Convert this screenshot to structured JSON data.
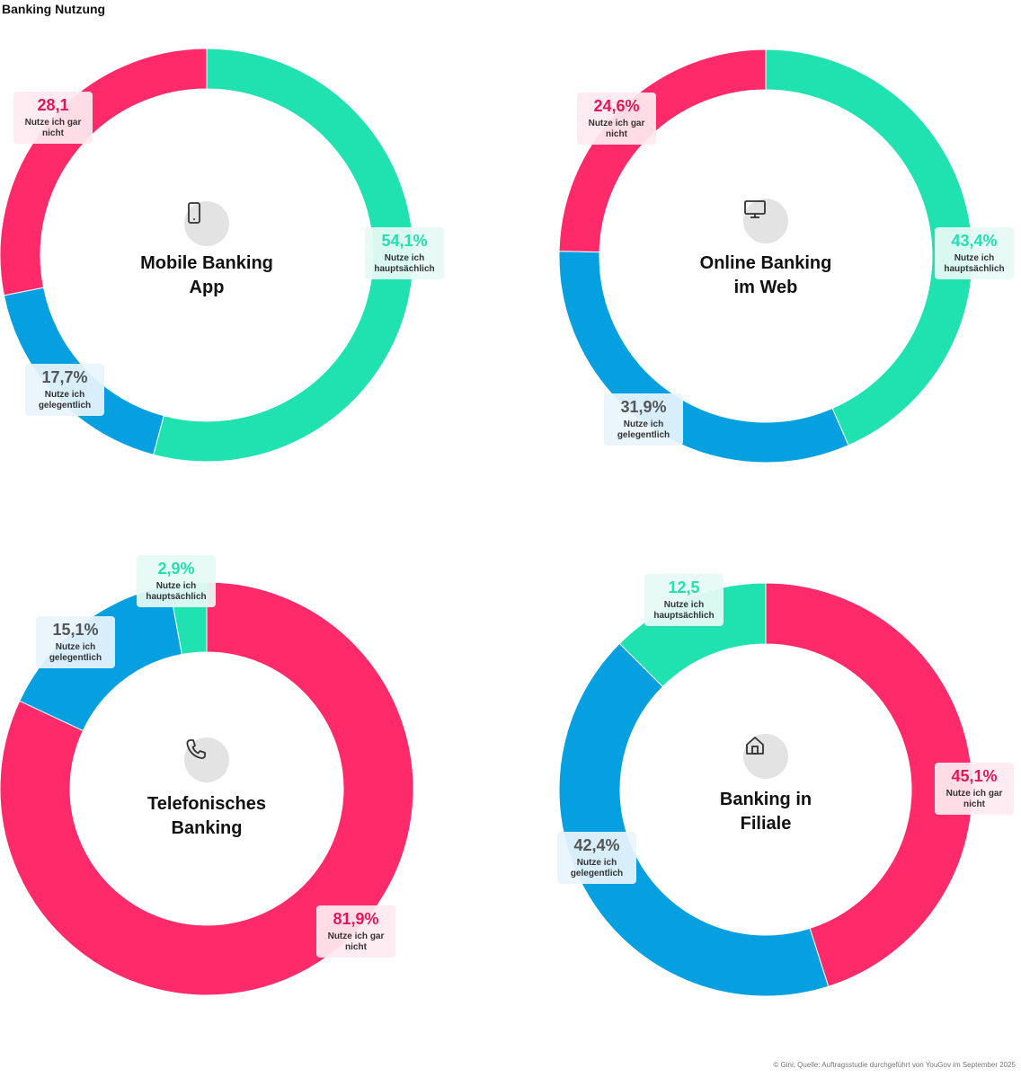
{
  "page_title": "Banking Nutzung",
  "footer": "© Gini; Quelle: Auftragsstudie durchgeführt von YouGov im September 2025",
  "colors": {
    "hauptsaechlich": "#20e2b0",
    "gelegentlich": "#069fdf",
    "gar_nicht": "#ff2a6a"
  },
  "chart_data": [
    {
      "type": "pie",
      "title": "Mobile Banking App",
      "icon": "smartphone-icon",
      "slices": [
        {
          "key": "hauptsaechlich",
          "value": 54.1,
          "label": "54,1%",
          "text": "Nutze ich hauptsächlich"
        },
        {
          "key": "gelegentlich",
          "value": 17.7,
          "label": "17,7%",
          "text": "Nutze ich gelegentlich"
        },
        {
          "key": "gar_nicht",
          "value": 28.1,
          "label": "28,1",
          "text": "Nutze ich gar nicht"
        }
      ]
    },
    {
      "type": "pie",
      "title": "Online Banking im Web",
      "icon": "monitor-icon",
      "slices": [
        {
          "key": "hauptsaechlich",
          "value": 43.4,
          "label": "43,4%",
          "text": "Nutze ich hauptsächlich"
        },
        {
          "key": "gelegentlich",
          "value": 31.9,
          "label": "31,9%",
          "text": "Nutze ich gelegentlich"
        },
        {
          "key": "gar_nicht",
          "value": 24.6,
          "label": "24,6%",
          "text": "Nutze ich gar nicht"
        }
      ]
    },
    {
      "type": "pie",
      "title": "Telefonisches Banking",
      "icon": "phone-icon",
      "slices": [
        {
          "key": "gar_nicht",
          "value": 81.9,
          "label": "81,9%",
          "text": "Nutze ich gar nicht"
        },
        {
          "key": "gelegentlich",
          "value": 15.1,
          "label": "15,1%",
          "text": "Nutze ich gelegentlich"
        },
        {
          "key": "hauptsaechlich",
          "value": 2.9,
          "label": "2,9%",
          "text": "Nutze ich hauptsächlich"
        }
      ]
    },
    {
      "type": "pie",
      "title": "Banking in Filiale",
      "icon": "house-icon",
      "slices": [
        {
          "key": "gar_nicht",
          "value": 45.1,
          "label": "45,1%",
          "text": "Nutze ich gar nicht"
        },
        {
          "key": "gelegentlich",
          "value": 42.4,
          "label": "42,4%",
          "text": "Nutze ich gelegentlich"
        },
        {
          "key": "hauptsaechlich",
          "value": 12.5,
          "label": "12,5",
          "text": "Nutze ich hauptsächlich"
        }
      ]
    }
  ]
}
